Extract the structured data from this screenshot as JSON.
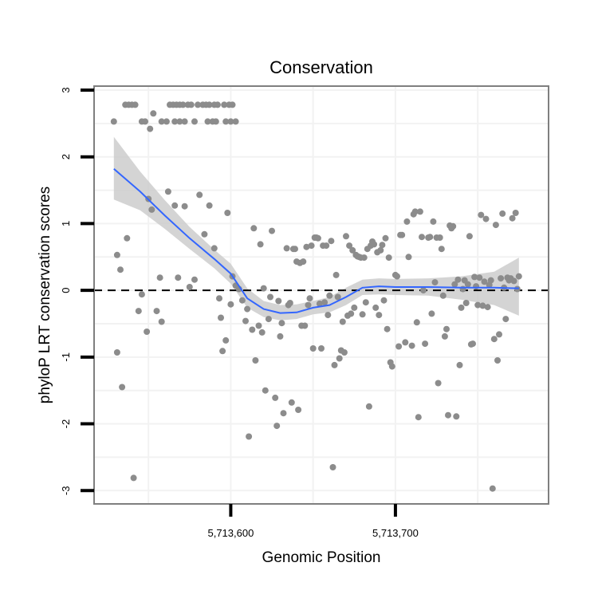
{
  "chart_data": {
    "type": "scatter",
    "title": "Conservation",
    "xlabel": "Genomic Position",
    "ylabel": "phyloP LRT conservation scores",
    "xlim": [
      5713517,
      5713793
    ],
    "ylim": [
      -3.2,
      3.06
    ],
    "x_ticks": [
      5713600,
      5713700
    ],
    "x_tick_labels": [
      "5,713,600",
      "5,713,700"
    ],
    "y_ticks": [
      -3,
      -2,
      -1,
      0,
      1,
      2,
      3
    ],
    "y_tick_labels": [
      "-3",
      "-2",
      "-1",
      "0",
      "1",
      "2",
      "3"
    ],
    "reference_line": {
      "y": 0,
      "style": "dashed"
    },
    "colors": {
      "points": "#8c8c8c",
      "smooth": "#3366ff",
      "ribbon": "#cccccc",
      "panel_border": "#7f7f7f",
      "grid": "#f2f2f2"
    },
    "points": [
      [
        5713529,
        2.53
      ],
      [
        5713536,
        2.78
      ],
      [
        5713538,
        2.78
      ],
      [
        5713540,
        2.78
      ],
      [
        5713542,
        2.78
      ],
      [
        5713546,
        2.53
      ],
      [
        5713548,
        2.53
      ],
      [
        5713551,
        2.42
      ],
      [
        5713553,
        2.65
      ],
      [
        5713558,
        2.53
      ],
      [
        5713561,
        2.53
      ],
      [
        5713563,
        2.78
      ],
      [
        5713565,
        2.78
      ],
      [
        5713567,
        2.78
      ],
      [
        5713569,
        2.78
      ],
      [
        5713571,
        2.78
      ],
      [
        5713566,
        2.53
      ],
      [
        5713569,
        2.53
      ],
      [
        5713572,
        2.53
      ],
      [
        5713574,
        2.78
      ],
      [
        5713576,
        2.78
      ],
      [
        5713578,
        2.53
      ],
      [
        5713580,
        2.78
      ],
      [
        5713583,
        2.78
      ],
      [
        5713585,
        2.78
      ],
      [
        5713587,
        2.78
      ],
      [
        5713590,
        2.78
      ],
      [
        5713592,
        2.78
      ],
      [
        5713586,
        2.53
      ],
      [
        5713589,
        2.53
      ],
      [
        5713591,
        2.53
      ],
      [
        5713596,
        2.78
      ],
      [
        5713599,
        2.78
      ],
      [
        5713601,
        2.78
      ],
      [
        5713597,
        2.53
      ],
      [
        5713600,
        2.53
      ],
      [
        5713603,
        2.53
      ],
      [
        5713531,
        0.53
      ],
      [
        5713533,
        0.31
      ],
      [
        5713531,
        -0.93
      ],
      [
        5713534,
        -1.45
      ],
      [
        5713537,
        0.78
      ],
      [
        5713541,
        -2.81
      ],
      [
        5713544,
        -0.31
      ],
      [
        5713546,
        -0.06
      ],
      [
        5713549,
        -0.62
      ],
      [
        5713550,
        1.37
      ],
      [
        5713552,
        1.21
      ],
      [
        5713555,
        -0.31
      ],
      [
        5713557,
        0.19
      ],
      [
        5713558,
        -0.47
      ],
      [
        5713562,
        1.48
      ],
      [
        5713566,
        1.27
      ],
      [
        5713568,
        0.19
      ],
      [
        5713572,
        1.26
      ],
      [
        5713575,
        0.05
      ],
      [
        5713578,
        0.16
      ],
      [
        5713581,
        1.43
      ],
      [
        5713584,
        0.84
      ],
      [
        5713587,
        1.27
      ],
      [
        5713590,
        0.63
      ],
      [
        5713593,
        -0.12
      ],
      [
        5713594,
        -0.41
      ],
      [
        5713595,
        -0.91
      ],
      [
        5713597,
        -0.75
      ],
      [
        5713598,
        1.16
      ],
      [
        5713600,
        -0.21
      ],
      [
        5713601,
        0.21
      ],
      [
        5713603,
        0.07
      ],
      [
        5713605,
        0.02
      ],
      [
        5713607,
        -0.15
      ],
      [
        5713609,
        -0.46
      ],
      [
        5713610,
        -0.28
      ],
      [
        5713611,
        -2.19
      ],
      [
        5713613,
        -0.59
      ],
      [
        5713614,
        0.93
      ],
      [
        5713615,
        -1.05
      ],
      [
        5713617,
        -0.53
      ],
      [
        5713618,
        0.69
      ],
      [
        5713619,
        -0.63
      ],
      [
        5713620,
        0.03
      ],
      [
        5713621,
        -1.5
      ],
      [
        5713623,
        -0.43
      ],
      [
        5713624,
        -0.1
      ],
      [
        5713625,
        0.89
      ],
      [
        5713627,
        -1.61
      ],
      [
        5713628,
        -2.03
      ],
      [
        5713629,
        -0.16
      ],
      [
        5713630,
        -0.69
      ],
      [
        5713631,
        -0.49
      ],
      [
        5713632,
        -1.84
      ],
      [
        5713634,
        0.63
      ],
      [
        5713635,
        -0.22
      ],
      [
        5713636,
        -0.19
      ],
      [
        5713637,
        -1.68
      ],
      [
        5713638,
        0.62
      ],
      [
        5713639,
        0.62
      ],
      [
        5713640,
        0.43
      ],
      [
        5713641,
        -1.79
      ],
      [
        5713642,
        0.41
      ],
      [
        5713643,
        -0.53
      ],
      [
        5713644,
        0.43
      ],
      [
        5713645,
        -0.53
      ],
      [
        5713646,
        0.65
      ],
      [
        5713647,
        -0.22
      ],
      [
        5713648,
        -0.12
      ],
      [
        5713649,
        0.67
      ],
      [
        5713650,
        -0.87
      ],
      [
        5713651,
        0.79
      ],
      [
        5713652,
        0.79
      ],
      [
        5713653,
        0.78
      ],
      [
        5713654,
        -0.2
      ],
      [
        5713655,
        -0.87
      ],
      [
        5713656,
        0.67
      ],
      [
        5713657,
        -0.18
      ],
      [
        5713658,
        0.67
      ],
      [
        5713659,
        -0.37
      ],
      [
        5713660,
        -0.08
      ],
      [
        5713661,
        0.74
      ],
      [
        5713662,
        -2.65
      ],
      [
        5713663,
        -1.12
      ],
      [
        5713664,
        0.23
      ],
      [
        5713665,
        -0.1
      ],
      [
        5713666,
        -1.02
      ],
      [
        5713667,
        -0.9
      ],
      [
        5713668,
        -0.47
      ],
      [
        5713669,
        -0.93
      ],
      [
        5713670,
        0.81
      ],
      [
        5713671,
        -0.38
      ],
      [
        5713672,
        0.67
      ],
      [
        5713673,
        -0.35
      ],
      [
        5713674,
        0.6
      ],
      [
        5713675,
        -0.26
      ],
      [
        5713676,
        0.53
      ],
      [
        5713677,
        0.51
      ],
      [
        5713678,
        0.5
      ],
      [
        5713679,
        0.49
      ],
      [
        5713680,
        -0.36
      ],
      [
        5713681,
        0.49
      ],
      [
        5713682,
        -0.18
      ],
      [
        5713683,
        0.62
      ],
      [
        5713684,
        -1.74
      ],
      [
        5713685,
        0.67
      ],
      [
        5713686,
        0.73
      ],
      [
        5713687,
        0.69
      ],
      [
        5713688,
        -0.26
      ],
      [
        5713689,
        0.57
      ],
      [
        5713690,
        -0.37
      ],
      [
        5713691,
        0.6
      ],
      [
        5713692,
        0.68
      ],
      [
        5713693,
        -0.15
      ],
      [
        5713694,
        0.78
      ],
      [
        5713695,
        -0.58
      ],
      [
        5713696,
        0.49
      ],
      [
        5713697,
        -1.08
      ],
      [
        5713698,
        -1.14
      ],
      [
        5713700,
        0.23
      ],
      [
        5713701,
        0.21
      ],
      [
        5713702,
        -0.84
      ],
      [
        5713703,
        0.83
      ],
      [
        5713704,
        0.83
      ],
      [
        5713706,
        -0.78
      ],
      [
        5713707,
        1.03
      ],
      [
        5713708,
        0.5
      ],
      [
        5713710,
        -0.83
      ],
      [
        5713711,
        1.14
      ],
      [
        5713712,
        1.18
      ],
      [
        5713713,
        -0.48
      ],
      [
        5713714,
        -1.9
      ],
      [
        5713715,
        1.18
      ],
      [
        5713716,
        0.8
      ],
      [
        5713717,
        0.0
      ],
      [
        5713718,
        -0.8
      ],
      [
        5713720,
        0.79
      ],
      [
        5713721,
        0.8
      ],
      [
        5713722,
        -0.35
      ],
      [
        5713723,
        1.03
      ],
      [
        5713724,
        0.12
      ],
      [
        5713725,
        0.79
      ],
      [
        5713726,
        -1.39
      ],
      [
        5713727,
        0.79
      ],
      [
        5713728,
        0.62
      ],
      [
        5713729,
        -0.08
      ],
      [
        5713730,
        -0.69
      ],
      [
        5713731,
        -0.58
      ],
      [
        5713732,
        -1.87
      ],
      [
        5713733,
        0.97
      ],
      [
        5713734,
        0.93
      ],
      [
        5713735,
        0.96
      ],
      [
        5713736,
        0.09
      ],
      [
        5713737,
        -1.89
      ],
      [
        5713738,
        0.16
      ],
      [
        5713739,
        -1.12
      ],
      [
        5713740,
        -0.26
      ],
      [
        5713741,
        0.02
      ],
      [
        5713742,
        0.15
      ],
      [
        5713743,
        -0.19
      ],
      [
        5713744,
        0.09
      ],
      [
        5713745,
        0.81
      ],
      [
        5713746,
        -0.81
      ],
      [
        5713747,
        -0.8
      ],
      [
        5713748,
        0.2
      ],
      [
        5713749,
        0.06
      ],
      [
        5713750,
        -0.22
      ],
      [
        5713751,
        0.19
      ],
      [
        5713752,
        1.13
      ],
      [
        5713753,
        -0.23
      ],
      [
        5713754,
        0.13
      ],
      [
        5713755,
        1.07
      ],
      [
        5713756,
        -0.25
      ],
      [
        5713757,
        0.08
      ],
      [
        5713758,
        0.15
      ],
      [
        5713759,
        -2.97
      ],
      [
        5713760,
        -0.73
      ],
      [
        5713761,
        0.98
      ],
      [
        5713762,
        -1.05
      ],
      [
        5713763,
        -0.66
      ],
      [
        5713764,
        0.18
      ],
      [
        5713765,
        1.15
      ],
      [
        5713766,
        0.04
      ],
      [
        5713767,
        -0.43
      ],
      [
        5713768,
        0.19
      ],
      [
        5713769,
        0.15
      ],
      [
        5713770,
        0.18
      ],
      [
        5713771,
        1.08
      ],
      [
        5713772,
        0.14
      ],
      [
        5713773,
        1.16
      ],
      [
        5713774,
        0.02
      ],
      [
        5713775,
        0.21
      ]
    ],
    "smooth": {
      "x": [
        5713529,
        5713545,
        5713560,
        5713575,
        5713590,
        5713600,
        5713610,
        5713620,
        5713630,
        5713640,
        5713650,
        5713660,
        5713670,
        5713680,
        5713690,
        5713700,
        5713720,
        5713740,
        5713760,
        5713775
      ],
      "y": [
        1.82,
        1.48,
        1.12,
        0.78,
        0.47,
        0.25,
        -0.12,
        -0.28,
        -0.34,
        -0.33,
        -0.26,
        -0.22,
        -0.1,
        0.04,
        0.06,
        0.05,
        0.05,
        0.04,
        0.04,
        0.03
      ],
      "lower": [
        1.36,
        1.2,
        0.92,
        0.62,
        0.33,
        0.1,
        -0.26,
        -0.4,
        -0.45,
        -0.43,
        -0.36,
        -0.33,
        -0.22,
        -0.07,
        -0.06,
        -0.07,
        -0.08,
        -0.14,
        -0.22,
        -0.38
      ],
      "upper": [
        2.3,
        1.78,
        1.35,
        0.95,
        0.61,
        0.4,
        0.03,
        -0.16,
        -0.22,
        -0.21,
        -0.16,
        -0.1,
        0.04,
        0.16,
        0.18,
        0.17,
        0.18,
        0.21,
        0.28,
        0.49
      ]
    }
  }
}
